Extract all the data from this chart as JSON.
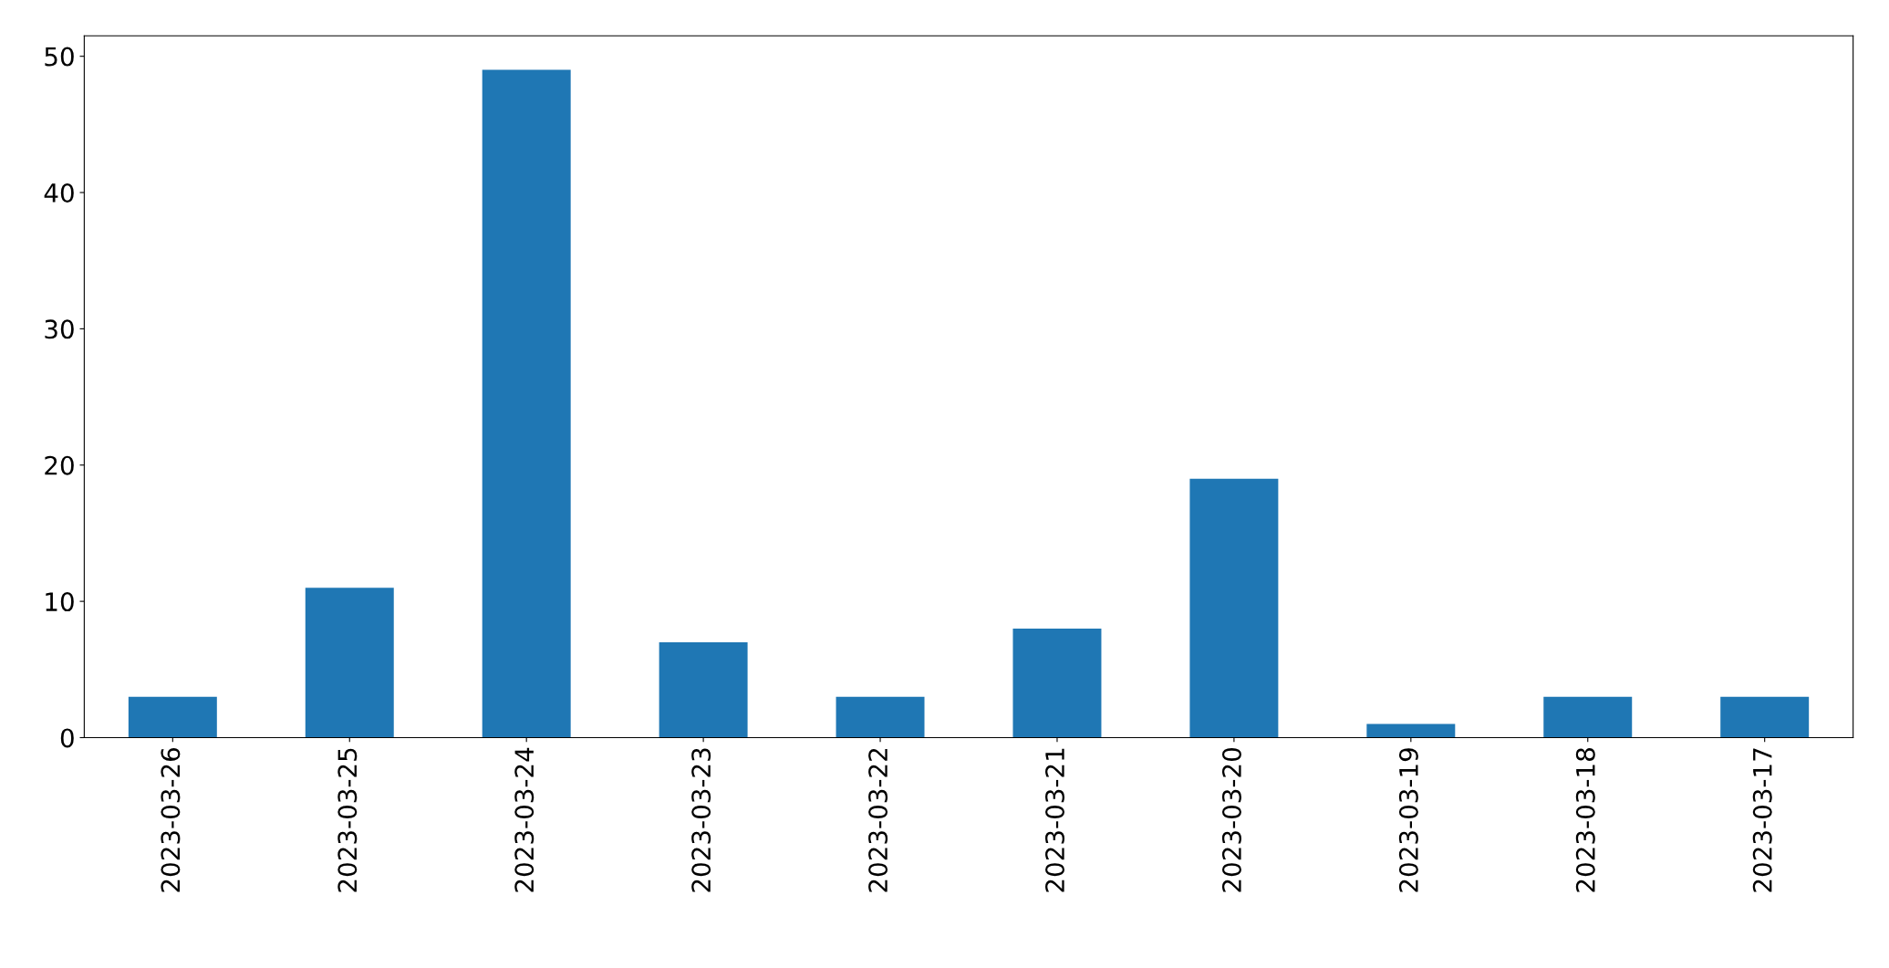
{
  "chart_data": {
    "type": "bar",
    "categories": [
      "2023-03-26",
      "2023-03-25",
      "2023-03-24",
      "2023-03-23",
      "2023-03-22",
      "2023-03-21",
      "2023-03-20",
      "2023-03-19",
      "2023-03-18",
      "2023-03-17"
    ],
    "values": [
      3,
      11,
      49,
      7,
      3,
      8,
      19,
      1,
      3,
      3
    ],
    "color": "#1f77b4",
    "ylim": [
      0,
      51.5
    ],
    "yticks": [
      0,
      10,
      20,
      30,
      40,
      50
    ],
    "grid": false,
    "legend": false
  }
}
